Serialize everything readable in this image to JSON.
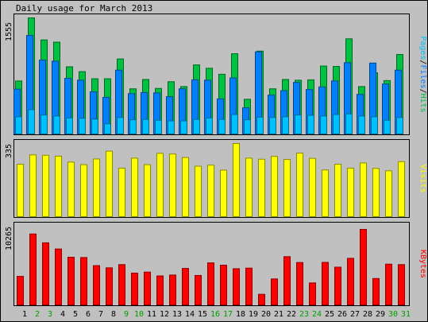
{
  "title": "Daily usage for March 2013",
  "colors": {
    "background": "#c0c0c0",
    "hits": "#00c040",
    "files": "#0080ff",
    "pages": "#00c0ff",
    "visits": "#ffff00",
    "kbytes": "#ff0000",
    "weekend_label": "#00a000",
    "weekday_label": "#000000"
  },
  "chart_data": [
    {
      "type": "bar",
      "panel": "hits-files-pages",
      "ylabel_parts": [
        {
          "text": "Pages",
          "color": "#00c0ff"
        },
        {
          "text": "/",
          "color": "#000000"
        },
        {
          "text": "Files",
          "color": "#0080ff"
        },
        {
          "text": "/",
          "color": "#000000"
        },
        {
          "text": "Hits",
          "color": "#00c040"
        }
      ],
      "max_label": "1555",
      "ylim": [
        0,
        1555
      ],
      "categories": [
        "1",
        "2",
        "3",
        "4",
        "5",
        "6",
        "7",
        "8",
        "9",
        "10",
        "11",
        "12",
        "13",
        "14",
        "15",
        "16",
        "17",
        "18",
        "19",
        "20",
        "21",
        "22",
        "23",
        "24",
        "25",
        "26",
        "27",
        "28",
        "29",
        "30",
        "31"
      ],
      "weekend": [
        false,
        true,
        true,
        false,
        false,
        false,
        false,
        false,
        true,
        true,
        false,
        false,
        false,
        false,
        false,
        true,
        true,
        false,
        false,
        false,
        false,
        false,
        true,
        true,
        false,
        false,
        false,
        false,
        false,
        true,
        true
      ],
      "series": [
        {
          "name": "Hits",
          "color": "#00c040",
          "values": [
            710,
            1555,
            1260,
            1230,
            900,
            835,
            740,
            740,
            1005,
            605,
            730,
            610,
            700,
            635,
            925,
            880,
            800,
            1075,
            465,
            1110,
            605,
            730,
            720,
            725,
            910,
            905,
            1275,
            635,
            820,
            715,
            1065
          ]
        },
        {
          "name": "Files",
          "color": "#0080ff",
          "values": [
            600,
            1320,
            990,
            975,
            745,
            720,
            565,
            490,
            855,
            540,
            555,
            550,
            500,
            605,
            725,
            720,
            470,
            750,
            350,
            1100,
            520,
            580,
            690,
            595,
            630,
            710,
            955,
            530,
            950,
            670,
            855
          ]
        },
        {
          "name": "Pages",
          "color": "#00c0ff",
          "values": [
            230,
            325,
            255,
            240,
            215,
            210,
            200,
            135,
            220,
            190,
            195,
            185,
            175,
            175,
            195,
            215,
            195,
            260,
            190,
            225,
            220,
            230,
            255,
            250,
            240,
            260,
            270,
            240,
            230,
            185,
            220
          ]
        }
      ]
    },
    {
      "type": "bar",
      "panel": "visits",
      "ylabel_parts": [
        {
          "text": "Visits",
          "color": "#ffff00"
        }
      ],
      "max_label": "335",
      "ylim": [
        0,
        335
      ],
      "series": [
        {
          "name": "Visits",
          "color": "#ffff00",
          "values": [
            240,
            283,
            281,
            277,
            250,
            238,
            264,
            300,
            222,
            268,
            238,
            290,
            287,
            271,
            231,
            236,
            213,
            335,
            268,
            263,
            276,
            262,
            291,
            267,
            214,
            240,
            222,
            246,
            221,
            210,
            252
          ]
        }
      ]
    },
    {
      "type": "bar",
      "panel": "kbytes",
      "ylabel_parts": [
        {
          "text": "KBytes",
          "color": "#ff0000"
        }
      ],
      "max_label": "10265",
      "ylim": [
        0,
        10265
      ],
      "series": [
        {
          "name": "KBytes",
          "color": "#ff0000",
          "values": [
            3880,
            9640,
            8440,
            7600,
            6480,
            6440,
            5340,
            5040,
            5480,
            4320,
            4460,
            3940,
            4060,
            4960,
            4000,
            5710,
            5400,
            4920,
            5000,
            1440,
            3530,
            6560,
            5760,
            2990,
            5780,
            5130,
            6330,
            10265,
            3590,
            5540,
            5480
          ]
        }
      ]
    }
  ]
}
